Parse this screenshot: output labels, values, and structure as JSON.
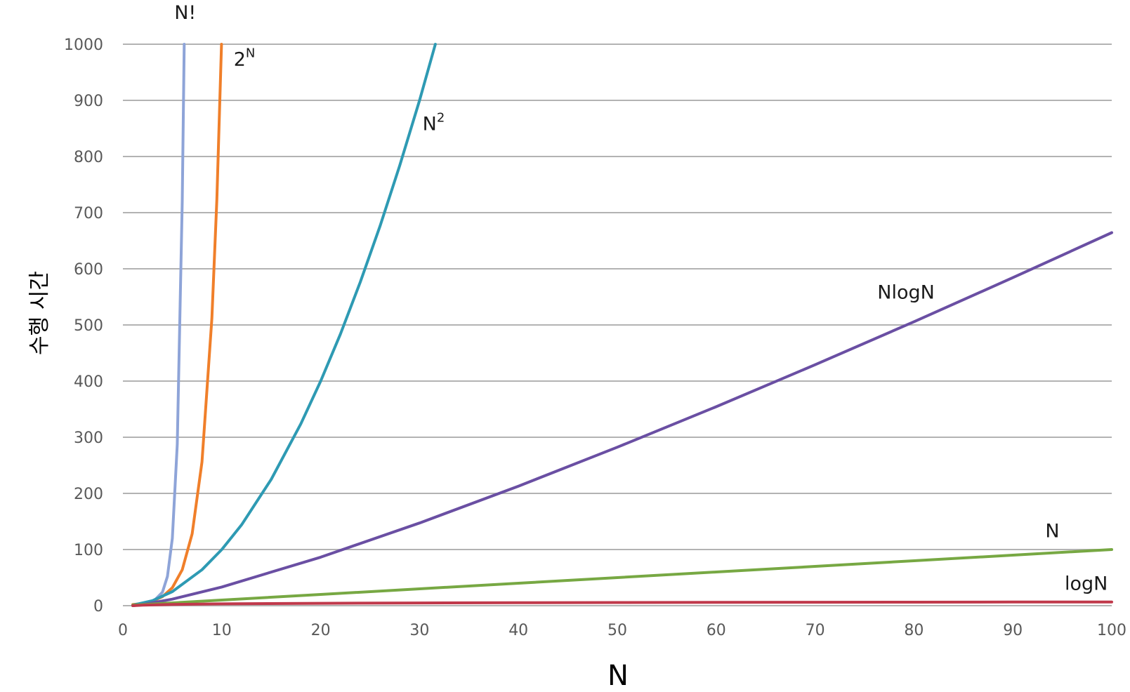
{
  "chart_data": {
    "type": "line",
    "xlabel": "N",
    "ylabel": "수행 시간",
    "xlim": [
      0,
      100
    ],
    "ylim": [
      0,
      1000
    ],
    "x_ticks": [
      "0",
      "10",
      "20",
      "30",
      "40",
      "50",
      "60",
      "70",
      "80",
      "90",
      "100"
    ],
    "y_ticks": [
      "0",
      "100",
      "200",
      "300",
      "400",
      "500",
      "600",
      "700",
      "800",
      "900",
      "1000"
    ],
    "grid": true,
    "legend": "none (series labeled directly on plot)",
    "series": [
      {
        "name": "N!",
        "label_base": "N!",
        "label_sup": "",
        "color": "#8EA4D8",
        "x": [
          1,
          2,
          3,
          4,
          4.5,
          5,
          5.5,
          6,
          6.2
        ],
        "y": [
          1,
          2,
          6,
          24,
          52,
          120,
          287,
          720,
          1000
        ]
      },
      {
        "name": "2N",
        "label_base": "2",
        "label_sup": "N",
        "color": "#F07F2A",
        "x": [
          1,
          2,
          3,
          4,
          5,
          6,
          7,
          8,
          9,
          9.5,
          9.97
        ],
        "y": [
          2,
          4,
          8,
          16,
          32,
          64,
          128,
          256,
          512,
          724,
          1000
        ]
      },
      {
        "name": "N2",
        "label_base": "N",
        "label_sup": "2",
        "color": "#2E9AB3",
        "x": [
          1,
          3,
          5,
          8,
          10,
          12,
          15,
          18,
          20,
          22,
          24,
          26,
          28,
          30,
          31.6
        ],
        "y": [
          1,
          9,
          25,
          64,
          100,
          144,
          225,
          324,
          400,
          484,
          576,
          676,
          784,
          900,
          1000
        ]
      },
      {
        "name": "NlogN",
        "label_base": "NlogN",
        "label_sup": "",
        "color": "#6A4FA3",
        "x": [
          1,
          2,
          5,
          10,
          20,
          30,
          40,
          50,
          60,
          70,
          80,
          90,
          100
        ],
        "y": [
          0,
          2,
          11.6,
          33.2,
          86.4,
          147.2,
          212.9,
          282.2,
          354.4,
          429.1,
          505.8,
          584.2,
          664.4
        ]
      },
      {
        "name": "N",
        "label_base": "N",
        "label_sup": "",
        "color": "#77A843",
        "x": [
          1,
          10,
          20,
          30,
          40,
          50,
          60,
          70,
          80,
          90,
          100
        ],
        "y": [
          1,
          10,
          20,
          30,
          40,
          50,
          60,
          70,
          80,
          90,
          100
        ]
      },
      {
        "name": "logN",
        "label_base": "logN",
        "label_sup": "",
        "color": "#C0394B",
        "x": [
          1,
          2,
          5,
          10,
          20,
          30,
          40,
          50,
          60,
          70,
          80,
          90,
          100
        ],
        "y": [
          0,
          1,
          2.3,
          3.3,
          4.3,
          4.9,
          5.3,
          5.6,
          5.9,
          6.1,
          6.3,
          6.5,
          6.6
        ]
      }
    ]
  }
}
